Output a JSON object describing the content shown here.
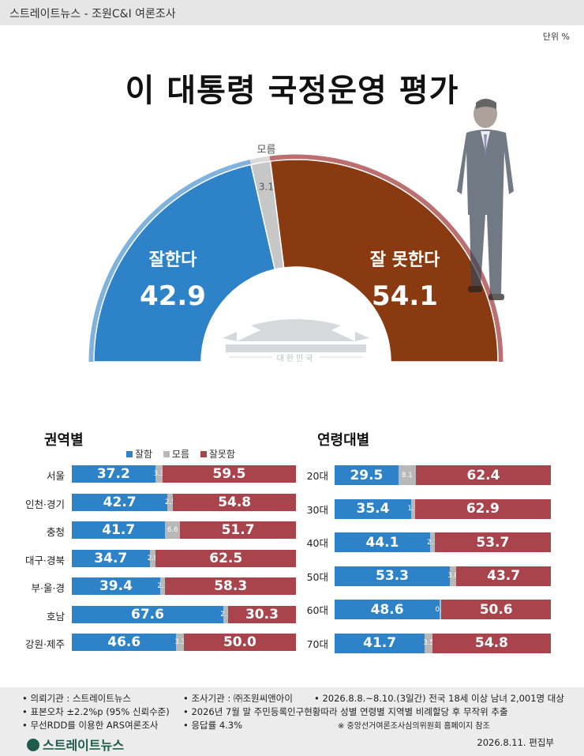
{
  "header": {
    "source": "스트레이트뉴스 - 조원C&I 여론조사",
    "unit": "단위 %"
  },
  "title": "이 대통령 국정운영 평가",
  "chart_data": [
    {
      "type": "pie",
      "title": "이 대통령 국정운영 평가",
      "slices": [
        {
          "label": "잘한다",
          "value": 42.9,
          "color": "#2e82c8"
        },
        {
          "label": "모름",
          "value": 3.1,
          "color": "#c7c7c7"
        },
        {
          "label": "잘 못한다",
          "value": 54.1,
          "color": "#8a3a10"
        }
      ]
    },
    {
      "type": "bar",
      "stacked": true,
      "title": "권역별",
      "legend": [
        "잘함",
        "모름",
        "잘못함"
      ],
      "categories": [
        "서울",
        "인천·경기",
        "충청",
        "대구·경북",
        "부·울·경",
        "호남",
        "강원·제주"
      ],
      "series": [
        {
          "name": "잘함",
          "values": [
            37.2,
            42.7,
            41.7,
            34.7,
            39.4,
            67.6,
            46.6
          ],
          "color": "#2e82c8"
        },
        {
          "name": "모름",
          "values": [
            3.3,
            2.5,
            6.6,
            2.8,
            2.3,
            2.1,
            3.3
          ],
          "color": "#b8b8b8"
        },
        {
          "name": "잘못함",
          "values": [
            59.5,
            54.8,
            51.7,
            62.5,
            58.3,
            30.3,
            50.0
          ],
          "color": "#a9434c"
        }
      ]
    },
    {
      "type": "bar",
      "stacked": true,
      "title": "연령대별",
      "categories": [
        "20대",
        "30대",
        "40대",
        "50대",
        "60대",
        "70대"
      ],
      "series": [
        {
          "name": "잘함",
          "values": [
            29.5,
            35.4,
            44.1,
            53.3,
            48.6,
            41.7
          ],
          "color": "#2e82c8"
        },
        {
          "name": "모름",
          "values": [
            8.1,
            1.7,
            2.1,
            3.0,
            0.8,
            3.5
          ],
          "color": "#b8b8b8"
        },
        {
          "name": "잘못함",
          "values": [
            62.4,
            62.9,
            53.7,
            43.7,
            50.6,
            54.8
          ],
          "color": "#a9434c"
        }
      ]
    }
  ],
  "seal_text": "대한민국",
  "footer": {
    "col1": [
      "• 의뢰기관 : 스트레이트뉴스",
      "• 표본오차 ±2.2%p (95% 신뢰수준)",
      "• 무선RDD를 이용한 ARS여론조사"
    ],
    "col2": [
      "• 조사기관 : ㈜조원씨앤아이",
      "• 2026년 7월 말 주민등록인구현황따라 성별 연령별 지역별 비례할당 후 무작위 추출",
      "• 응답률 4.3%"
    ],
    "col3": [
      "• 2026.8.8.~8.10.(3일간) 전국 18세 이상 남녀 2,001명 대상",
      "※ 중앙선거여론조사심의위원회 홈페이지 참조"
    ],
    "logo": "스트레이트뉴스",
    "date": "2026.8.11.  편집부"
  }
}
